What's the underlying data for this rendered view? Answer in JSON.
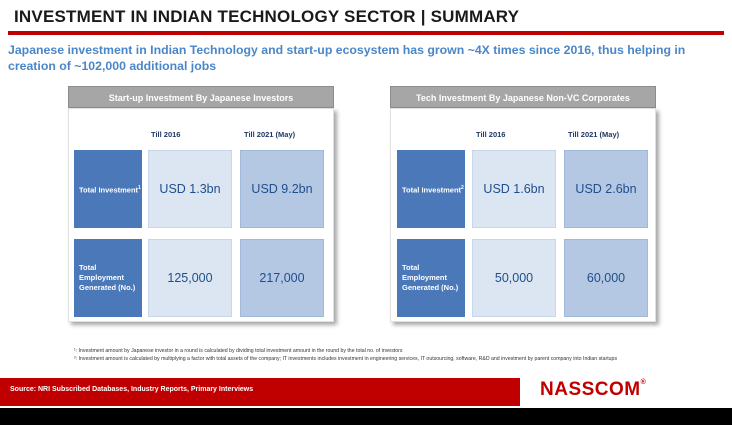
{
  "header": {
    "title": "INVESTMENT IN INDIAN TECHNOLOGY SECTOR | SUMMARY",
    "subtitle": "Japanese investment in Indian Technology and start-up ecosystem has grown ~4X times since 2016, thus helping in creation of ~102,000 additional jobs"
  },
  "panels": [
    {
      "heading": "Start-up Investment By Japanese Investors",
      "col1": "Till 2016",
      "col2": "Till 2021 (May)",
      "row1_label": "Total Investment",
      "row1_sup": "1",
      "row2_label": "Total Employment Generated (No.)",
      "row1_v1": "USD 1.3bn",
      "row1_v2": "USD 9.2bn",
      "row2_v1": "125,000",
      "row2_v2": "217,000"
    },
    {
      "heading": "Tech Investment By Japanese Non-VC Corporates",
      "col1": "Till 2016",
      "col2": "Till 2021 (May)",
      "row1_label": "Total Investment",
      "row1_sup": "2",
      "row2_label": "Total Employment Generated (No.)",
      "row1_v1": "USD 1.6bn",
      "row1_v2": "USD 2.6bn",
      "row2_v1": "50,000",
      "row2_v2": "60,000"
    }
  ],
  "footnotes": {
    "note1": "¹: Investment amount by Japanese investor in a round is calculated by dividing total investment amount in the round by the total no. of investors",
    "note2": "²: Investment amount is calculated by multiplying a factor with total assets of the company; IT investments includes investment in engineering services, IT outsourcing, software, R&D and investment by parent company into Indian startups"
  },
  "footer": {
    "source": "Source: NRI Subscribed Databases, Industry Reports, Primary Interviews",
    "logo": "NASSCOM",
    "logo_mark": "®"
  }
}
